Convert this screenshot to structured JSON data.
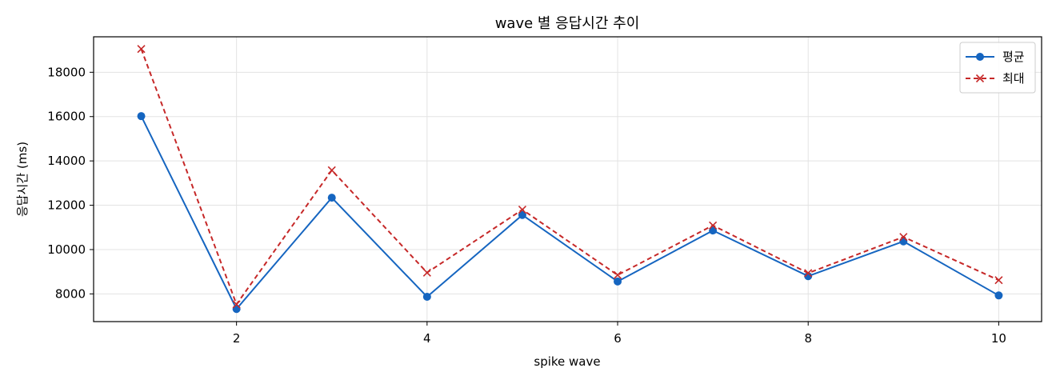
{
  "chart_data": {
    "type": "line",
    "title": "wave 별 응답시간 추이",
    "xlabel": "spike wave",
    "ylabel": "응답시간 (ms)",
    "x": [
      1,
      2,
      3,
      4,
      5,
      6,
      7,
      8,
      9,
      10
    ],
    "x_ticks": [
      2,
      4,
      6,
      8,
      10
    ],
    "y_ticks": [
      8000,
      10000,
      12000,
      14000,
      16000,
      18000
    ],
    "xlim": [
      0.5,
      10.45
    ],
    "ylim": [
      6750,
      19600
    ],
    "grid": true,
    "legend_position": "top-right",
    "series": [
      {
        "name": "평균",
        "values": [
          16020,
          7320,
          12340,
          7870,
          11560,
          8560,
          10860,
          8800,
          10370,
          7930
        ],
        "color": "#1565c0",
        "line_style": "solid",
        "marker": "circle"
      },
      {
        "name": "최대",
        "values": [
          19050,
          7530,
          13580,
          8960,
          11800,
          8850,
          11090,
          8940,
          10570,
          8620
        ],
        "color": "#c62828",
        "line_style": "dashed",
        "marker": "x"
      }
    ]
  }
}
